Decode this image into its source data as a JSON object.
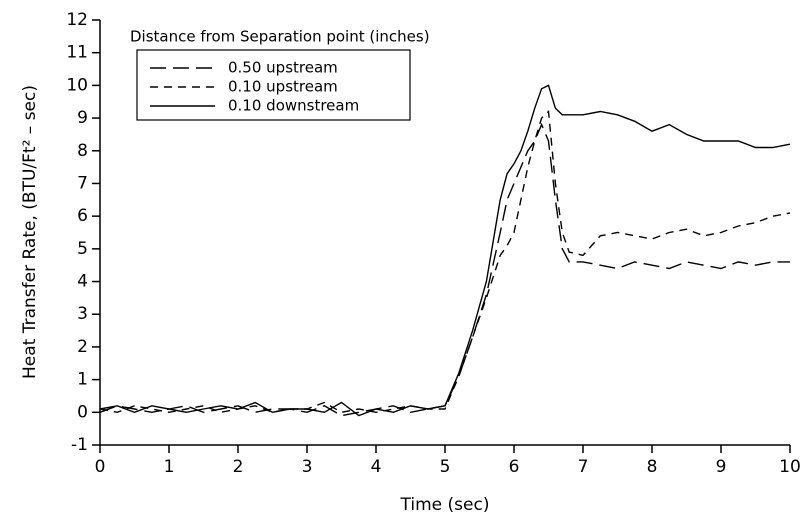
{
  "chart_data": {
    "type": "line",
    "xlabel": "Time  (sec)",
    "ylabel": "Heat Transfer Rate,  (BTU/Ft² – sec)",
    "legend_title": "Distance from Separation point (inches)",
    "legend": "upper-left",
    "x": [
      0,
      0.25,
      0.5,
      0.75,
      1,
      1.25,
      1.5,
      1.75,
      2,
      2.25,
      2.5,
      2.75,
      3,
      3.25,
      3.5,
      3.75,
      4,
      4.25,
      4.5,
      4.75,
      5,
      5.2,
      5.4,
      5.6,
      5.8,
      5.9,
      6.0,
      6.1,
      6.2,
      6.3,
      6.4,
      6.5,
      6.6,
      6.7,
      6.8,
      7.0,
      7.25,
      7.5,
      7.75,
      8,
      8.25,
      8.5,
      8.75,
      9,
      9.25,
      9.5,
      9.75,
      10
    ],
    "series": [
      {
        "name": "0.50  upstream",
        "color": "#000000",
        "style": "long-dash",
        "values": [
          0.0,
          0.2,
          0.1,
          0.0,
          0.1,
          0.2,
          0.0,
          0.1,
          0.2,
          0.0,
          0.1,
          0.1,
          0.0,
          0.2,
          -0.1,
          0.0,
          0.1,
          0.2,
          0.0,
          0.1,
          0.2,
          1.1,
          2.3,
          3.6,
          5.5,
          6.5,
          7.0,
          7.5,
          8.0,
          8.3,
          8.8,
          8.3,
          6.5,
          5.0,
          4.6,
          4.6,
          4.5,
          4.4,
          4.6,
          4.5,
          4.4,
          4.6,
          4.5,
          4.4,
          4.6,
          4.5,
          4.6,
          4.6
        ]
      },
      {
        "name": "0.10  upstream",
        "color": "#000000",
        "style": "short-dash",
        "values": [
          0.1,
          0.0,
          0.2,
          0.1,
          0.0,
          0.1,
          0.2,
          0.0,
          0.1,
          0.2,
          0.0,
          0.1,
          0.1,
          0.3,
          0.0,
          0.1,
          0.0,
          0.1,
          0.2,
          0.1,
          0.1,
          1.1,
          2.3,
          3.5,
          4.8,
          5.1,
          5.5,
          6.5,
          7.5,
          8.3,
          9.0,
          9.2,
          7.0,
          5.5,
          4.9,
          4.8,
          5.4,
          5.5,
          5.4,
          5.3,
          5.5,
          5.6,
          5.4,
          5.5,
          5.7,
          5.8,
          6.0,
          6.1
        ]
      },
      {
        "name": "0.10  downstream",
        "color": "#000000",
        "style": "solid",
        "values": [
          0.1,
          0.2,
          0.0,
          0.2,
          0.1,
          0.0,
          0.1,
          0.2,
          0.1,
          0.3,
          0.0,
          0.1,
          0.1,
          0.0,
          0.3,
          -0.1,
          0.1,
          0.0,
          0.2,
          0.1,
          0.2,
          1.2,
          2.5,
          4.0,
          6.5,
          7.3,
          7.6,
          8.0,
          8.6,
          9.3,
          9.9,
          10.0,
          9.3,
          9.1,
          9.1,
          9.1,
          9.2,
          9.1,
          8.9,
          8.6,
          8.8,
          8.5,
          8.3,
          8.3,
          8.3,
          8.1,
          8.1,
          8.2
        ]
      }
    ],
    "xlim": [
      0,
      10
    ],
    "xticks": [
      0,
      1,
      2,
      3,
      4,
      5,
      6,
      7,
      8,
      9,
      10
    ],
    "ylim": [
      -1,
      12
    ],
    "yticks": [
      -1,
      0,
      1,
      2,
      3,
      4,
      5,
      6,
      7,
      8,
      9,
      10,
      11,
      12
    ],
    "grid": false
  }
}
